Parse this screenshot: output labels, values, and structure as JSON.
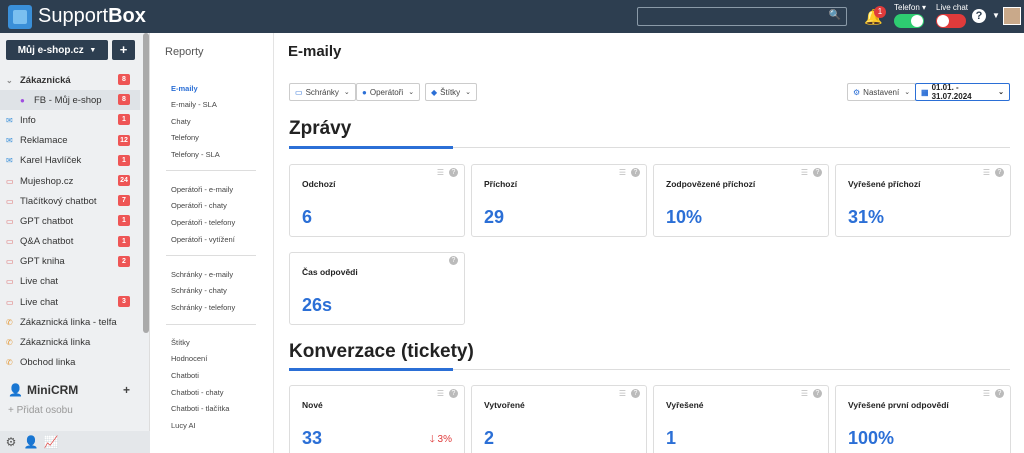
{
  "app": {
    "brand_light": "Support",
    "brand_bold": "Box"
  },
  "topbar": {
    "search_placeholder": "",
    "notifications_count": "1",
    "telefon_label": "Telefon ▾",
    "livechat_label": "Live chat",
    "help_label": "?"
  },
  "sidebar": {
    "shop_button": "Můj e-shop.cz",
    "add_label": "+",
    "items": [
      {
        "label": "Zákaznická",
        "badge": "8"
      },
      {
        "label": "FB - Můj e-shop",
        "badge": "8"
      },
      {
        "label": "Info",
        "badge": "1"
      },
      {
        "label": "Reklamace",
        "badge": "12"
      },
      {
        "label": "Karel Havlíček",
        "badge": "1"
      },
      {
        "label": "Mujeshop.cz",
        "badge": "24"
      },
      {
        "label": "Tlačítkový chatbot",
        "badge": "7"
      },
      {
        "label": "GPT chatbot",
        "badge": "1"
      },
      {
        "label": "Q&A chatbot",
        "badge": "1"
      },
      {
        "label": "GPT kniha",
        "badge": "2"
      },
      {
        "label": "Live chat",
        "badge": ""
      },
      {
        "label": "Live chat",
        "badge": "3"
      },
      {
        "label": "Zákaznická linka - telfa",
        "badge": ""
      },
      {
        "label": "Zákaznická linka",
        "badge": ""
      },
      {
        "label": "Obchod linka",
        "badge": ""
      }
    ],
    "minicrm_title": "MiniCRM",
    "minicrm_add": "+",
    "add_person": "Přidat osobu"
  },
  "reports_nav": {
    "title": "Reporty",
    "groups": [
      [
        "E-maily",
        "E-maily - SLA",
        "Chaty",
        "Telefony",
        "Telefony - SLA"
      ],
      [
        "Operátoři - e-maily",
        "Operátoři - chaty",
        "Operátoři - telefony",
        "Operátoři - vytížení"
      ],
      [
        "Schránky - e-maily",
        "Schránky - chaty",
        "Schránky - telefony"
      ],
      [
        "Štítky",
        "Hodnocení",
        "Chatboti",
        "Chatboti - chaty",
        "Chatboti - tlačítka",
        "Lucy AI"
      ]
    ]
  },
  "main": {
    "title": "E-maily",
    "filters": {
      "mailboxes": "Schránky",
      "operators": "Operátoři",
      "tags": "Štítky",
      "settings": "Nastavení",
      "date_range": "01.01. - 31.07.2024"
    },
    "section_messages": {
      "title": "Zprávy",
      "cards": [
        {
          "label": "Odchozí",
          "value": "6"
        },
        {
          "label": "Příchozí",
          "value": "29"
        },
        {
          "label": "Zodpovězené příchozí",
          "value": "10%"
        },
        {
          "label": "Vyřešené příchozí",
          "value": "31%"
        },
        {
          "label": "Čas odpovědi",
          "value": "26s"
        }
      ]
    },
    "section_conversion": {
      "title": "Konverzace (tickety)",
      "cards": [
        {
          "label": "Nové",
          "value": "33",
          "trend": "3%"
        },
        {
          "label": "Vytvořené",
          "value": "2"
        },
        {
          "label": "Vyřešené",
          "value": "1"
        },
        {
          "label": "Vyřešené první odpovědí",
          "value": "100%"
        }
      ]
    }
  },
  "colors": {
    "accent": "#2b6fd6",
    "topbar": "#2d3e50",
    "badge": "#e55555",
    "toggle_on": "#2ecc71",
    "toggle_off": "#e03b3b"
  }
}
